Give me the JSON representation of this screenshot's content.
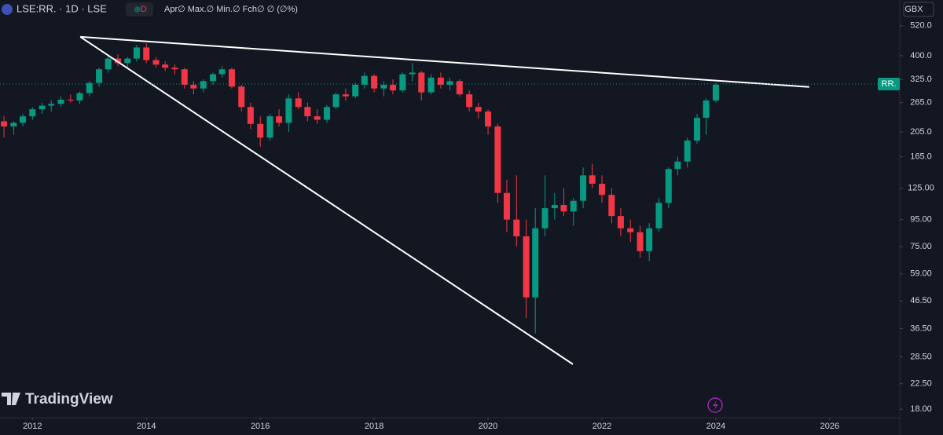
{
  "header": {
    "symbol": "LSE:RR. · 1D · LSE",
    "badge": "D",
    "ohlc": "Apr∅ Max.∅ Min.∅ Fch∅ ∅ (∅%)",
    "currency": "GBX",
    "logo": "TradingView"
  },
  "chart_data": {
    "type": "candlestick",
    "log_scale": true,
    "grid": false,
    "up_color": "#089981",
    "down_color": "#f23645",
    "xlim": [
      2011.43,
      2027.23
    ],
    "xticks": [
      2012,
      2014,
      2016,
      2018,
      2020,
      2022,
      2024,
      2026
    ],
    "ylim": [
      16.7,
      652
    ],
    "yticks": [
      {
        "value": 520,
        "label": "520.0"
      },
      {
        "value": 400,
        "label": "400.0"
      },
      {
        "value": 325,
        "label": "325.0"
      },
      {
        "value": 265,
        "label": "265.0"
      },
      {
        "value": 205,
        "label": "205.0"
      },
      {
        "value": 165,
        "label": "165.0"
      },
      {
        "value": 125,
        "label": "125.00"
      },
      {
        "value": 95,
        "label": "95.00"
      },
      {
        "value": 75,
        "label": "75.00"
      },
      {
        "value": 59,
        "label": "59.00"
      },
      {
        "value": 46.5,
        "label": "46.50"
      },
      {
        "value": 36.5,
        "label": "36.50"
      },
      {
        "value": 28.5,
        "label": "28.50"
      },
      {
        "value": 22.5,
        "label": "22.50"
      },
      {
        "value": 18,
        "label": "18.00"
      }
    ],
    "x": [
      2011.5,
      2011.67,
      2011.83,
      2012.0,
      2012.17,
      2012.33,
      2012.5,
      2012.67,
      2012.83,
      2013.0,
      2013.17,
      2013.33,
      2013.5,
      2013.67,
      2013.83,
      2014.0,
      2014.17,
      2014.33,
      2014.5,
      2014.67,
      2014.83,
      2015.0,
      2015.17,
      2015.33,
      2015.5,
      2015.67,
      2015.83,
      2016.0,
      2016.17,
      2016.33,
      2016.5,
      2016.67,
      2016.83,
      2017.0,
      2017.17,
      2017.33,
      2017.5,
      2017.67,
      2017.83,
      2018.0,
      2018.17,
      2018.33,
      2018.5,
      2018.67,
      2018.83,
      2019.0,
      2019.17,
      2019.33,
      2019.5,
      2019.67,
      2019.83,
      2020.0,
      2020.17,
      2020.33,
      2020.5,
      2020.67,
      2020.83,
      2021.0,
      2021.17,
      2021.33,
      2021.5,
      2021.67,
      2021.83,
      2022.0,
      2022.17,
      2022.33,
      2022.5,
      2022.67,
      2022.83,
      2023.0,
      2023.17,
      2023.33,
      2023.5,
      2023.67,
      2023.83,
      2024.0
    ],
    "open": [
      225,
      215,
      222,
      235,
      250,
      258,
      262,
      272,
      270,
      288,
      315,
      355,
      390,
      375,
      390,
      430,
      385,
      370,
      360,
      355,
      310,
      300,
      320,
      340,
      355,
      305,
      255,
      220,
      195,
      235,
      222,
      275,
      255,
      235,
      228,
      255,
      285,
      280,
      310,
      335,
      300,
      310,
      295,
      340,
      345,
      290,
      330,
      310,
      320,
      285,
      255,
      245,
      215,
      120,
      95,
      82,
      48,
      88,
      105,
      108,
      102,
      112,
      140,
      130,
      118,
      98,
      88,
      85,
      72,
      88,
      110,
      148,
      158,
      190,
      232,
      270
    ],
    "high": [
      235,
      225,
      240,
      255,
      265,
      270,
      280,
      285,
      292,
      320,
      360,
      400,
      405,
      395,
      440,
      445,
      395,
      380,
      370,
      360,
      320,
      325,
      345,
      365,
      360,
      310,
      265,
      235,
      240,
      250,
      285,
      290,
      265,
      250,
      260,
      290,
      300,
      315,
      345,
      340,
      320,
      325,
      345,
      375,
      350,
      340,
      345,
      330,
      325,
      295,
      265,
      250,
      220,
      135,
      140,
      95,
      105,
      140,
      120,
      125,
      115,
      150,
      155,
      140,
      125,
      105,
      95,
      90,
      92,
      115,
      150,
      165,
      195,
      240,
      275,
      315
    ],
    "low": [
      195,
      200,
      215,
      228,
      240,
      245,
      255,
      265,
      262,
      280,
      305,
      345,
      365,
      360,
      380,
      375,
      360,
      350,
      340,
      300,
      285,
      290,
      310,
      330,
      300,
      245,
      210,
      180,
      190,
      215,
      205,
      250,
      225,
      220,
      222,
      250,
      270,
      275,
      300,
      290,
      280,
      285,
      290,
      320,
      270,
      285,
      300,
      295,
      280,
      245,
      230,
      200,
      110,
      85,
      75,
      40,
      35,
      82,
      95,
      98,
      90,
      105,
      125,
      110,
      92,
      82,
      78,
      68,
      66,
      85,
      105,
      140,
      150,
      185,
      200,
      265
    ],
    "close": [
      215,
      222,
      235,
      250,
      258,
      262,
      272,
      270,
      288,
      315,
      355,
      390,
      375,
      390,
      430,
      385,
      370,
      360,
      355,
      310,
      300,
      320,
      340,
      355,
      305,
      255,
      220,
      195,
      235,
      222,
      275,
      255,
      235,
      228,
      255,
      285,
      280,
      310,
      335,
      300,
      310,
      295,
      340,
      345,
      290,
      330,
      310,
      320,
      285,
      255,
      245,
      215,
      120,
      95,
      82,
      48,
      88,
      105,
      108,
      102,
      112,
      140,
      130,
      118,
      98,
      88,
      85,
      72,
      88,
      110,
      148,
      158,
      190,
      232,
      270,
      310
    ],
    "trendlines": [
      {
        "x": [
          2012.84,
          2025.64
        ],
        "y": [
          472,
          304
        ]
      },
      {
        "x": [
          2012.84,
          2021.49
        ],
        "y": [
          472,
          26.7
        ]
      }
    ],
    "last_price": 312,
    "last_label": "RR."
  }
}
